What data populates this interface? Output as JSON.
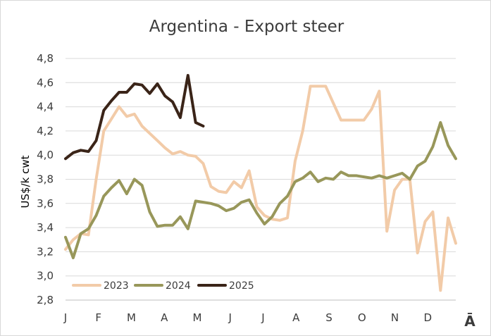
{
  "chart_data": {
    "type": "line",
    "title": "Argentina - Export steer",
    "ylabel": "US$/k cwt",
    "xlabel": "",
    "ylim": [
      2.8,
      4.8
    ],
    "yticks": [
      "2,8",
      "3,0",
      "3,2",
      "3,4",
      "3,6",
      "3,8",
      "4,0",
      "4,2",
      "4,4",
      "4,6",
      "4,8"
    ],
    "x_tick_labels": [
      "J",
      "F",
      "M",
      "A",
      "M",
      "J",
      "J",
      "A",
      "S",
      "O",
      "N",
      "D"
    ],
    "corner_label": "Ā",
    "grid": "horizontal",
    "legend_position": "bottom-left",
    "series": [
      {
        "name": "2023",
        "color": "#f2cba8",
        "values": [
          3.22,
          3.3,
          3.35,
          3.34,
          3.8,
          4.2,
          4.3,
          4.4,
          4.32,
          4.34,
          4.24,
          4.18,
          4.12,
          4.06,
          4.01,
          4.03,
          4.0,
          3.99,
          3.93,
          3.74,
          3.7,
          3.69,
          3.78,
          3.73,
          3.87,
          3.57,
          3.5,
          3.47,
          3.46,
          3.48,
          3.95,
          4.2,
          4.57,
          4.57,
          4.57,
          4.43,
          4.29,
          4.29,
          4.29,
          4.29,
          4.38,
          4.53,
          3.37,
          3.71,
          3.8,
          3.8,
          3.19,
          3.45,
          3.53,
          2.88,
          3.48,
          3.27
        ]
      },
      {
        "name": "2024",
        "color": "#98975a",
        "values": [
          3.32,
          3.15,
          3.35,
          3.39,
          3.5,
          3.66,
          3.73,
          3.79,
          3.68,
          3.8,
          3.75,
          3.53,
          3.41,
          3.42,
          3.42,
          3.49,
          3.39,
          3.62,
          3.61,
          3.6,
          3.58,
          3.54,
          3.56,
          3.61,
          3.63,
          3.52,
          3.43,
          3.49,
          3.6,
          3.66,
          3.78,
          3.81,
          3.86,
          3.78,
          3.81,
          3.8,
          3.86,
          3.83,
          3.83,
          3.82,
          3.81,
          3.83,
          3.81,
          3.83,
          3.85,
          3.8,
          3.91,
          3.95,
          4.07,
          4.27,
          4.08,
          3.97
        ]
      },
      {
        "name": "2025",
        "color": "#3a2418",
        "values": [
          3.97,
          4.02,
          4.04,
          4.03,
          4.12,
          4.37,
          4.45,
          4.52,
          4.52,
          4.59,
          4.58,
          4.51,
          4.59,
          4.49,
          4.44,
          4.31,
          4.66,
          4.27,
          4.24
        ]
      }
    ]
  }
}
